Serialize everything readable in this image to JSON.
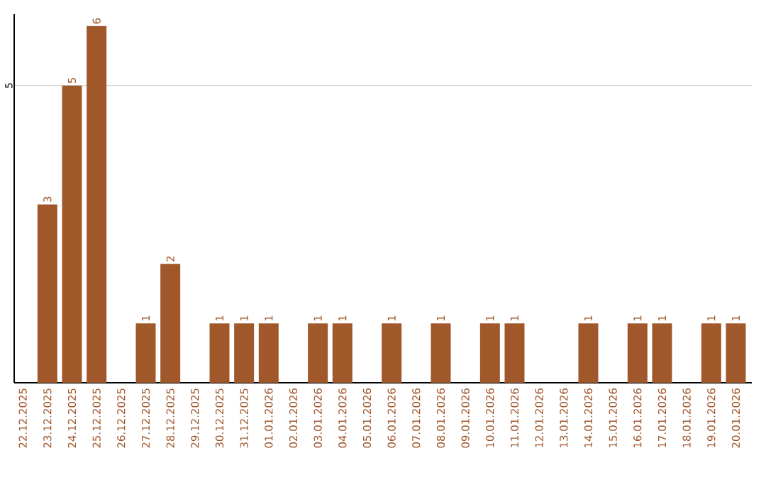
{
  "chart_data": {
    "type": "bar",
    "categories": [
      "22.12.2025",
      "23.12.2025",
      "24.12.2025",
      "25.12.2025",
      "26.12.2025",
      "27.12.2025",
      "28.12.2025",
      "29.12.2025",
      "30.12.2025",
      "31.12.2025",
      "01.01.2026",
      "02.01.2026",
      "03.01.2026",
      "04.01.2026",
      "05.01.2026",
      "06.01.2026",
      "07.01.2026",
      "08.01.2026",
      "09.01.2026",
      "10.01.2026",
      "11.01.2026",
      "12.01.2026",
      "13.01.2026",
      "14.01.2026",
      "15.01.2026",
      "16.01.2026",
      "17.01.2026",
      "18.01.2026",
      "19.01.2026",
      "20.01.2026"
    ],
    "values": [
      0,
      3,
      5,
      6,
      0,
      1,
      2,
      0,
      1,
      1,
      1,
      0,
      1,
      1,
      0,
      1,
      0,
      1,
      0,
      1,
      1,
      0,
      0,
      1,
      0,
      1,
      1,
      0,
      1,
      1
    ],
    "value_labels": [
      null,
      "3",
      "5",
      "6",
      null,
      "1",
      "2",
      null,
      "1",
      "1",
      "1",
      null,
      "1",
      "1",
      null,
      "1",
      null,
      "1",
      null,
      "1",
      "1",
      null,
      null,
      "1",
      null,
      "1",
      "1",
      null,
      "1",
      "1"
    ],
    "color": "#a0572a",
    "ylim": [
      0,
      6.2
    ],
    "yticks": [
      5
    ],
    "grid": "y"
  }
}
